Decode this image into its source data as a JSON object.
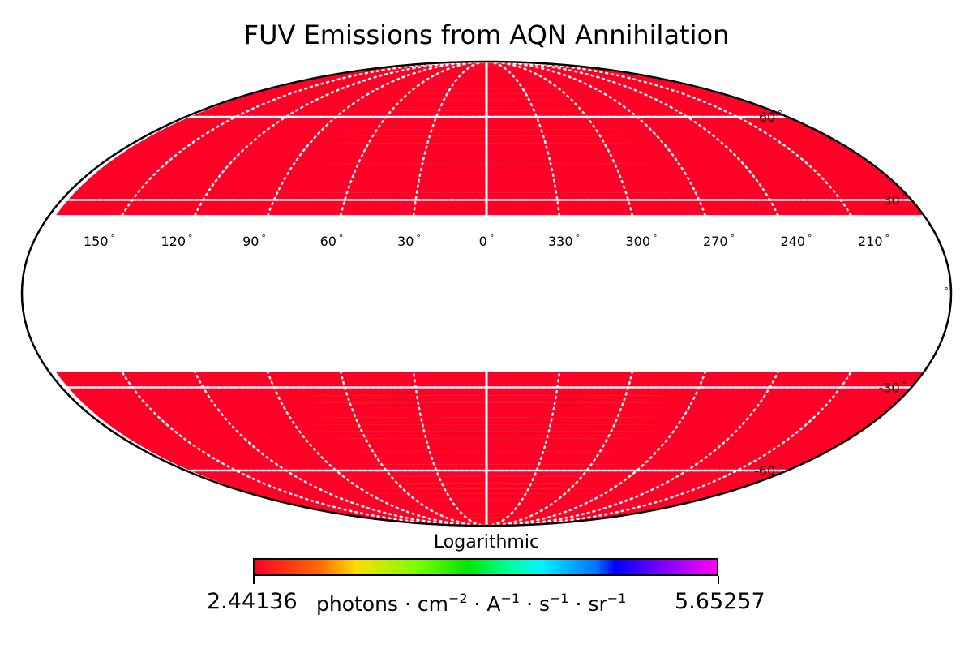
{
  "chart_data": {
    "type": "heatmap",
    "projection": "mollweide",
    "title": "FUV Emissions from AQN Annihilation",
    "colormap": [
      "#ff0026",
      "#ff6a00",
      "#ffdd00",
      "#7dff00",
      "#00e600",
      "#00ff9a",
      "#00f6ff",
      "#0070ff",
      "#0000ff",
      "#7a00ff",
      "#ff00ff"
    ],
    "value_range": [
      2.44136,
      5.65257
    ],
    "masked_latitude_range_deg": [
      -25,
      25
    ],
    "peak_longitude_deg": 0,
    "longitude_ticks": [
      150,
      120,
      90,
      60,
      30,
      0,
      330,
      300,
      270,
      240,
      210
    ],
    "longitude_tick_labels": [
      "150",
      "120",
      "90",
      "60",
      "30",
      "0",
      "330",
      "300",
      "270",
      "240",
      "210"
    ],
    "latitude_ticks": [
      60,
      30,
      0,
      -30,
      -60
    ],
    "latitude_tick_labels": [
      "60",
      "30",
      "",
      "-30",
      "-60"
    ],
    "degree_symbol": "°",
    "colorbar": {
      "label": "Logarithmic",
      "min_label": "2.44136",
      "max_label": "5.65257",
      "units": {
        "photons": "photons",
        "cm": "cm",
        "cm_exp": "−2",
        "A": "A",
        "A_exp": "−1",
        "s": "s",
        "s_exp": "−1",
        "sr": "sr",
        "sr_exp": "−1",
        "dot": "·"
      }
    }
  }
}
